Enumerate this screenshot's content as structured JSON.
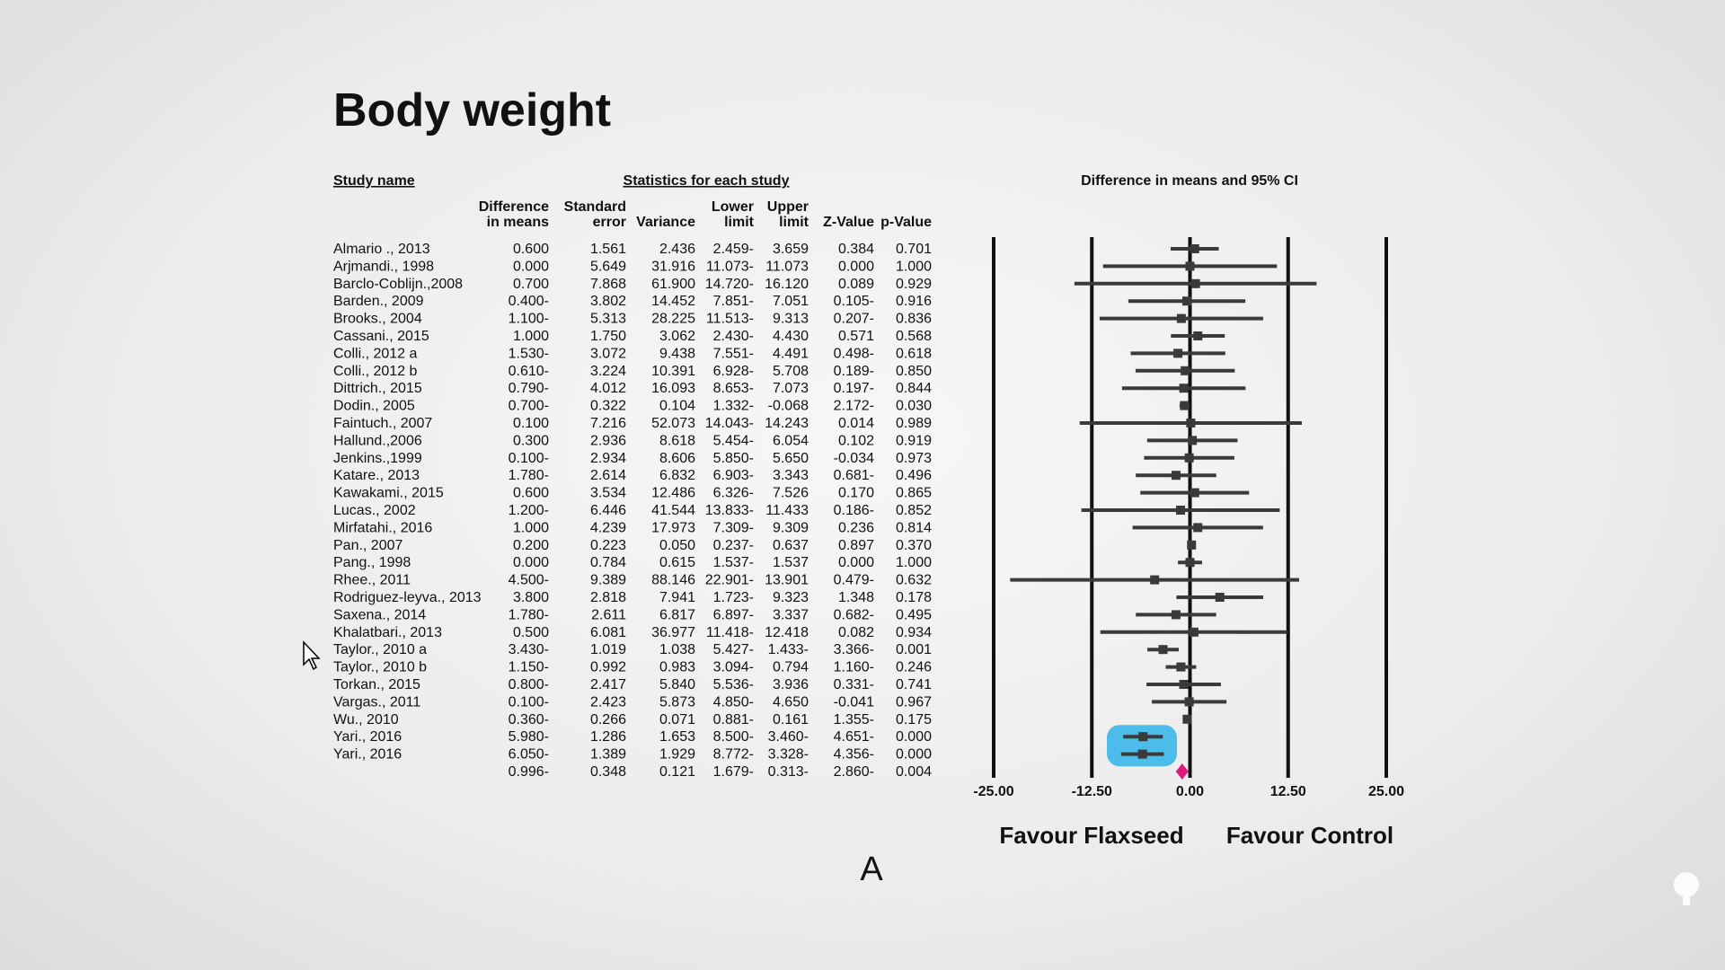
{
  "title": "Body weight",
  "table": {
    "group_headers": [
      "Study name",
      "Statistics for each study"
    ],
    "columns": [
      [
        "Difference",
        "in means"
      ],
      [
        "Standard",
        "error"
      ],
      [
        "Variance"
      ],
      [
        "Lower",
        "limit"
      ],
      [
        "Upper",
        "limit"
      ],
      [
        "Z-Value"
      ],
      [
        "p-Value"
      ]
    ],
    "rows": [
      [
        "Almario ., 2013",
        "0.600",
        "1.561",
        "2.436",
        "2.459-",
        "3.659",
        "0.384",
        "0.701"
      ],
      [
        "Arjmandi., 1998",
        "0.000",
        "5.649",
        "31.916",
        "11.073-",
        "11.073",
        "0.000",
        "1.000"
      ],
      [
        "Barclo-Coblijn.,2008",
        "0.700",
        "7.868",
        "61.900",
        "14.720-",
        "16.120",
        "0.089",
        "0.929"
      ],
      [
        "Barden., 2009",
        "0.400-",
        "3.802",
        "14.452",
        "7.851-",
        "7.051",
        "0.105-",
        "0.916"
      ],
      [
        "Brooks., 2004",
        "1.100-",
        "5.313",
        "28.225",
        "11.513-",
        "9.313",
        "0.207-",
        "0.836"
      ],
      [
        "Cassani., 2015",
        "1.000",
        "1.750",
        "3.062",
        "2.430-",
        "4.430",
        "0.571",
        "0.568"
      ],
      [
        "Colli., 2012 a",
        "1.530-",
        "3.072",
        "9.438",
        "7.551-",
        "4.491",
        "0.498-",
        "0.618"
      ],
      [
        "Colli., 2012 b",
        "0.610-",
        "3.224",
        "10.391",
        "6.928-",
        "5.708",
        "0.189-",
        "0.850"
      ],
      [
        "Dittrich., 2015",
        "0.790-",
        "4.012",
        "16.093",
        "8.653-",
        "7.073",
        "0.197-",
        "0.844"
      ],
      [
        "Dodin., 2005",
        "0.700-",
        "0.322",
        "0.104",
        "1.332-",
        "-0.068",
        "2.172-",
        "0.030"
      ],
      [
        "Faintuch., 2007",
        "0.100",
        "7.216",
        "52.073",
        "14.043-",
        "14.243",
        "0.014",
        "0.989"
      ],
      [
        "Hallund.,2006",
        "0.300",
        "2.936",
        "8.618",
        "5.454-",
        "6.054",
        "0.102",
        "0.919"
      ],
      [
        "Jenkins.,1999",
        "0.100-",
        "2.934",
        "8.606",
        "5.850-",
        "5.650",
        "-0.034",
        "0.973"
      ],
      [
        "Katare., 2013",
        "1.780-",
        "2.614",
        "6.832",
        "6.903-",
        "3.343",
        "0.681-",
        "0.496"
      ],
      [
        "Kawakami., 2015",
        "0.600",
        "3.534",
        "12.486",
        "6.326-",
        "7.526",
        "0.170",
        "0.865"
      ],
      [
        "Lucas., 2002",
        "1.200-",
        "6.446",
        "41.544",
        "13.833-",
        "11.433",
        "0.186-",
        "0.852"
      ],
      [
        "Mirfatahi., 2016",
        "1.000",
        "4.239",
        "17.973",
        "7.309-",
        "9.309",
        "0.236",
        "0.814"
      ],
      [
        "Pan., 2007",
        "0.200",
        "0.223",
        "0.050",
        "0.237-",
        "0.637",
        "0.897",
        "0.370"
      ],
      [
        "Pang., 1998",
        "0.000",
        "0.784",
        "0.615",
        "1.537-",
        "1.537",
        "0.000",
        "1.000"
      ],
      [
        "Rhee., 2011",
        "4.500-",
        "9.389",
        "88.146",
        "22.901-",
        "13.901",
        "0.479-",
        "0.632"
      ],
      [
        "Rodriguez-leyva., 2013",
        "3.800",
        "2.818",
        "7.941",
        "1.723-",
        "9.323",
        "1.348",
        "0.178"
      ],
      [
        "Saxena., 2014",
        "1.780-",
        "2.611",
        "6.817",
        "6.897-",
        "3.337",
        "0.682-",
        "0.495"
      ],
      [
        "Khalatbari., 2013",
        "0.500",
        "6.081",
        "36.977",
        "11.418-",
        "12.418",
        "0.082",
        "0.934"
      ],
      [
        "Taylor., 2010 a",
        "3.430-",
        "1.019",
        "1.038",
        "5.427-",
        "1.433-",
        "3.366-",
        "0.001"
      ],
      [
        "Taylor., 2010 b",
        "1.150-",
        "0.992",
        "0.983",
        "3.094-",
        "0.794",
        "1.160-",
        "0.246"
      ],
      [
        "Torkan., 2015",
        "0.800-",
        "2.417",
        "5.840",
        "5.536-",
        "3.936",
        "0.331-",
        "0.741"
      ],
      [
        "Vargas., 2011",
        "0.100-",
        "2.423",
        "5.873",
        "4.850-",
        "4.650",
        "-0.041",
        "0.967"
      ],
      [
        "Wu.,  2010",
        "0.360-",
        "0.266",
        "0.071",
        "0.881-",
        "0.161",
        "1.355-",
        "0.175"
      ],
      [
        "Yari.,  2016",
        "5.980-",
        "1.286",
        "1.653",
        "8.500-",
        "3.460-",
        "4.651-",
        "0.000"
      ],
      [
        "Yari., 2016",
        "6.050-",
        "1.389",
        "1.929",
        "8.772-",
        "3.328-",
        "4.356-",
        "0.000"
      ]
    ],
    "summary": [
      "0.996-",
      "0.348",
      "0.121",
      "1.679-",
      "0.313-",
      "2.860-",
      "0.004"
    ]
  },
  "chart_data": {
    "type": "forest",
    "title": "Difference in means and 95% CI",
    "values": [
      0.6,
      0,
      0.7,
      -0.4,
      -1.1,
      1.0,
      -1.53,
      -0.61,
      -0.79,
      -0.7,
      0.1,
      0.3,
      -0.1,
      -1.78,
      0.6,
      -1.2,
      1.0,
      0.2,
      0,
      -4.5,
      3.8,
      -1.78,
      0.5,
      -3.43,
      -1.15,
      -0.8,
      -0.1,
      -0.36,
      -5.98,
      -6.05
    ],
    "lower": [
      -2.459,
      -11.073,
      -14.72,
      -7.851,
      -11.513,
      -2.43,
      -7.551,
      -6.928,
      -8.653,
      -1.332,
      -14.043,
      -5.454,
      -5.85,
      -6.903,
      -6.326,
      -13.833,
      -7.309,
      -0.237,
      -1.537,
      -22.901,
      -1.723,
      -6.897,
      -11.418,
      -5.427,
      -3.094,
      -5.536,
      -4.85,
      -0.881,
      -8.5,
      -8.772
    ],
    "upper": [
      3.659,
      11.073,
      16.12,
      7.051,
      9.313,
      4.43,
      4.491,
      5.708,
      7.073,
      -0.068,
      14.243,
      6.054,
      5.65,
      3.343,
      7.526,
      11.433,
      9.309,
      0.637,
      1.537,
      13.901,
      9.323,
      3.337,
      12.418,
      -1.433,
      0.794,
      3.936,
      4.65,
      0.161,
      -3.46,
      -3.328
    ],
    "color": "#3a3a3a",
    "summary": {
      "value": -0.996,
      "lower": -1.679,
      "upper": -0.313,
      "color": "#e0197d"
    },
    "xlim": [
      -25,
      25
    ],
    "xticks": [
      {
        "value": -25,
        "label": "-25.00"
      },
      {
        "value": -12.5,
        "label": "-12.50"
      },
      {
        "value": 0,
        "label": "0.00"
      },
      {
        "value": 12.5,
        "label": "12.50"
      },
      {
        "value": 25,
        "label": "25.00"
      }
    ],
    "left_label": "Favour Flaxseed",
    "right_label": "Favour Control"
  },
  "caption": "A"
}
